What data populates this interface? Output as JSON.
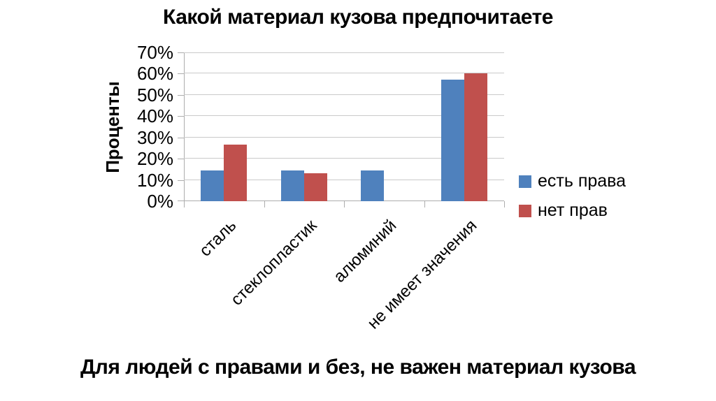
{
  "chart_data": {
    "type": "bar",
    "title": "Какой материал кузова предпочитаете",
    "categories": [
      "сталь",
      "стеклопластик",
      "алюминий",
      "не имеет значения"
    ],
    "series": [
      {
        "name": "есть права",
        "color": "#4F81BD",
        "values": [
          14.3,
          14.3,
          14.3,
          57.1
        ]
      },
      {
        "name": "нет прав",
        "color": "#C0504D",
        "values": [
          26.7,
          13.3,
          0,
          60
        ]
      }
    ],
    "xlabel": "",
    "ylabel": "Проценты",
    "ylim": [
      0,
      70
    ],
    "y_tick_labels": [
      "0%",
      "10%",
      "20%",
      "30%",
      "40%",
      "50%",
      "60%",
      "70%"
    ],
    "grid": true,
    "legend_position": "right",
    "caption": "Для людей с правами и без, не важен материал кузова"
  },
  "colors": {
    "series_has_license": "#4F81BD",
    "series_no_license": "#C0504D",
    "gridline": "#C9C9C9",
    "axis": "#ADADAD",
    "text": "#000000",
    "background": "#FFFFFF"
  }
}
